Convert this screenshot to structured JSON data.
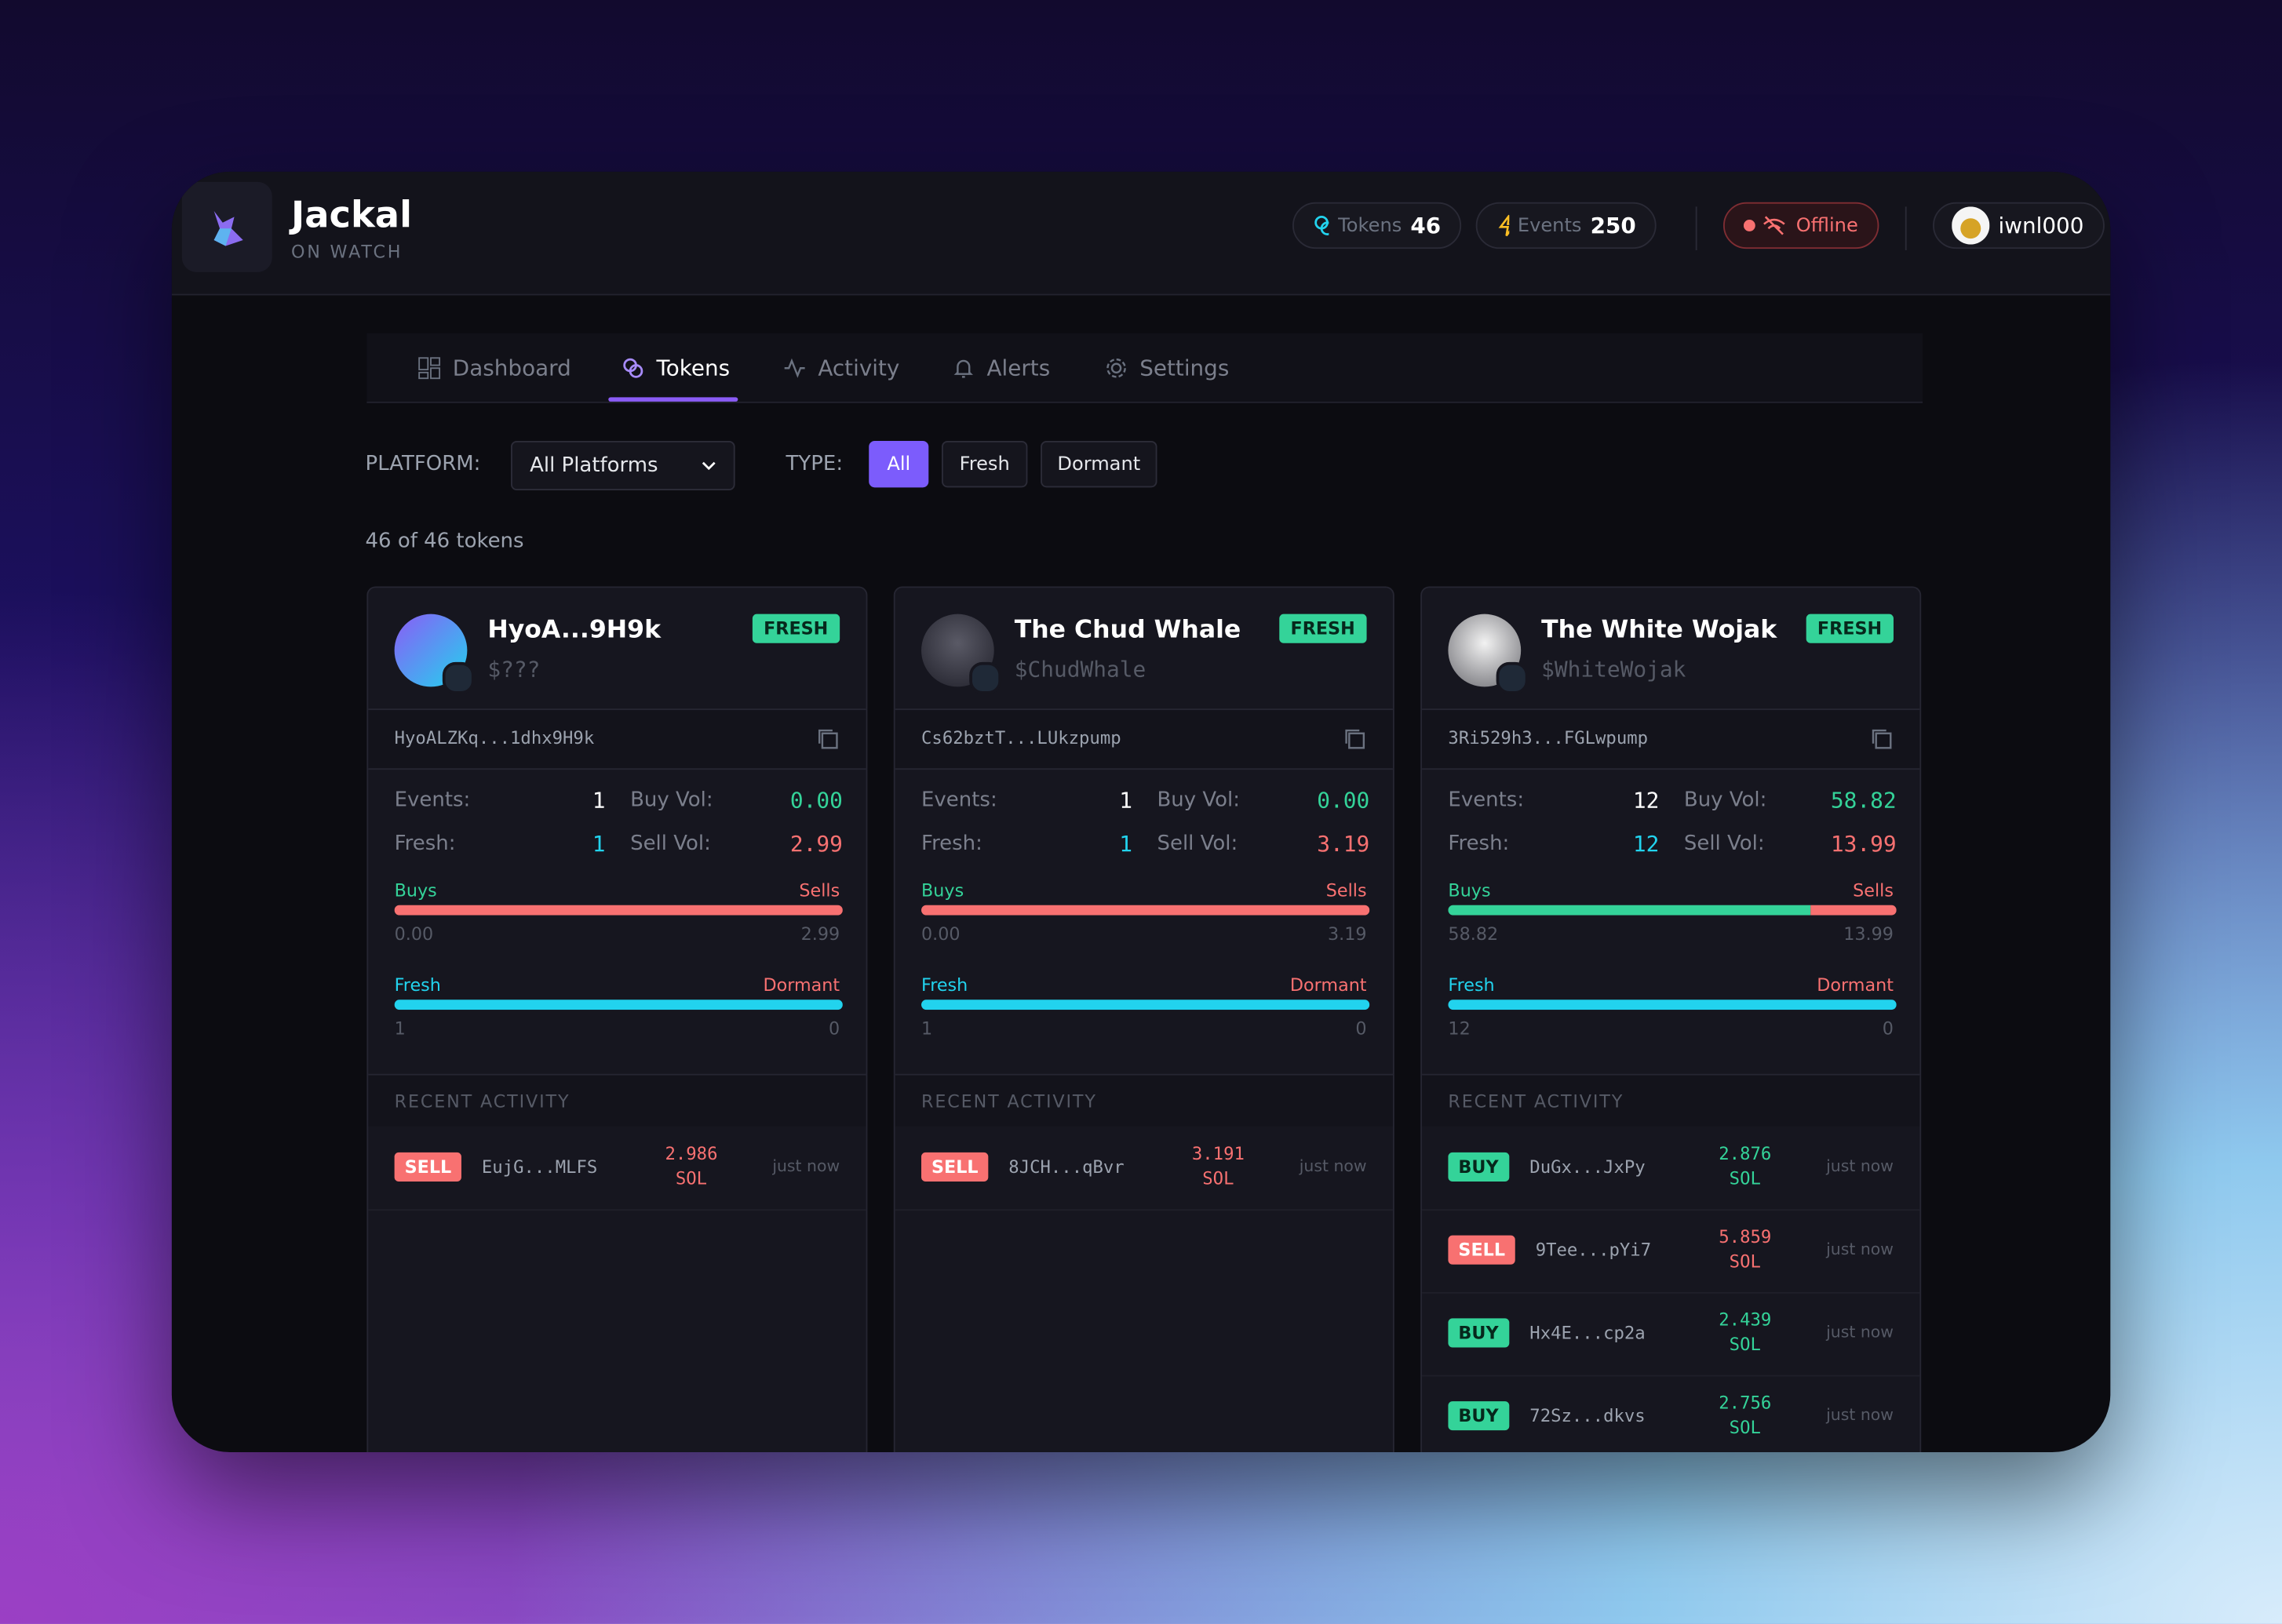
{
  "header": {
    "brand": "Jackal",
    "tagline": "ON WATCH",
    "tokens_label": "Tokens",
    "tokens_count": "46",
    "events_label": "Events",
    "events_count": "250",
    "status": "Offline",
    "user": "iwnl000"
  },
  "nav": [
    "Dashboard",
    "Tokens",
    "Activity",
    "Alerts",
    "Settings"
  ],
  "filters": {
    "platform_label": "PLATFORM:",
    "platform_value": "All Platforms",
    "type_label": "TYPE:",
    "types": [
      "All",
      "Fresh",
      "Dormant"
    ]
  },
  "count_text": "46 of 46 tokens",
  "labels": {
    "events": "Events:",
    "fresh": "Fresh:",
    "buy_vol": "Buy Vol:",
    "sell_vol": "Sell Vol:",
    "buys": "Buys",
    "sells": "Sells",
    "fresh_bar": "Fresh",
    "dormant_bar": "Dormant",
    "recent": "RECENT ACTIVITY",
    "unit": "SOL",
    "time": "just now"
  },
  "cards": [
    {
      "name": "HyoA...9H9k",
      "ticker": "$???",
      "badge": "FRESH",
      "address": "HyoALZKq...1dhx9H9k",
      "events": "1",
      "fresh": "1",
      "dormant": "0",
      "buy": "0.00",
      "sell": "2.99",
      "activity": [
        {
          "side": "SELL",
          "wallet": "EujG...MLFS",
          "amount": "2.986"
        }
      ]
    },
    {
      "name": "The Chud Whale",
      "ticker": "$ChudWhale",
      "badge": "FRESH",
      "address": "Cs62bztT...LUkzpump",
      "events": "1",
      "fresh": "1",
      "dormant": "0",
      "buy": "0.00",
      "sell": "3.19",
      "activity": [
        {
          "side": "SELL",
          "wallet": "8JCH...qBvr",
          "amount": "3.191"
        }
      ]
    },
    {
      "name": "The White Wojak",
      "ticker": "$WhiteWojak",
      "badge": "FRESH",
      "address": "3Ri529h3...FGLwpump",
      "events": "12",
      "fresh": "12",
      "dormant": "0",
      "buy": "58.82",
      "sell": "13.99",
      "activity": [
        {
          "side": "BUY",
          "wallet": "DuGx...JxPy",
          "amount": "2.876"
        },
        {
          "side": "SELL",
          "wallet": "9Tee...pYi7",
          "amount": "5.859"
        },
        {
          "side": "BUY",
          "wallet": "Hx4E...cp2a",
          "amount": "2.439"
        },
        {
          "side": "BUY",
          "wallet": "72Sz...dkvs",
          "amount": "2.756"
        }
      ]
    }
  ]
}
